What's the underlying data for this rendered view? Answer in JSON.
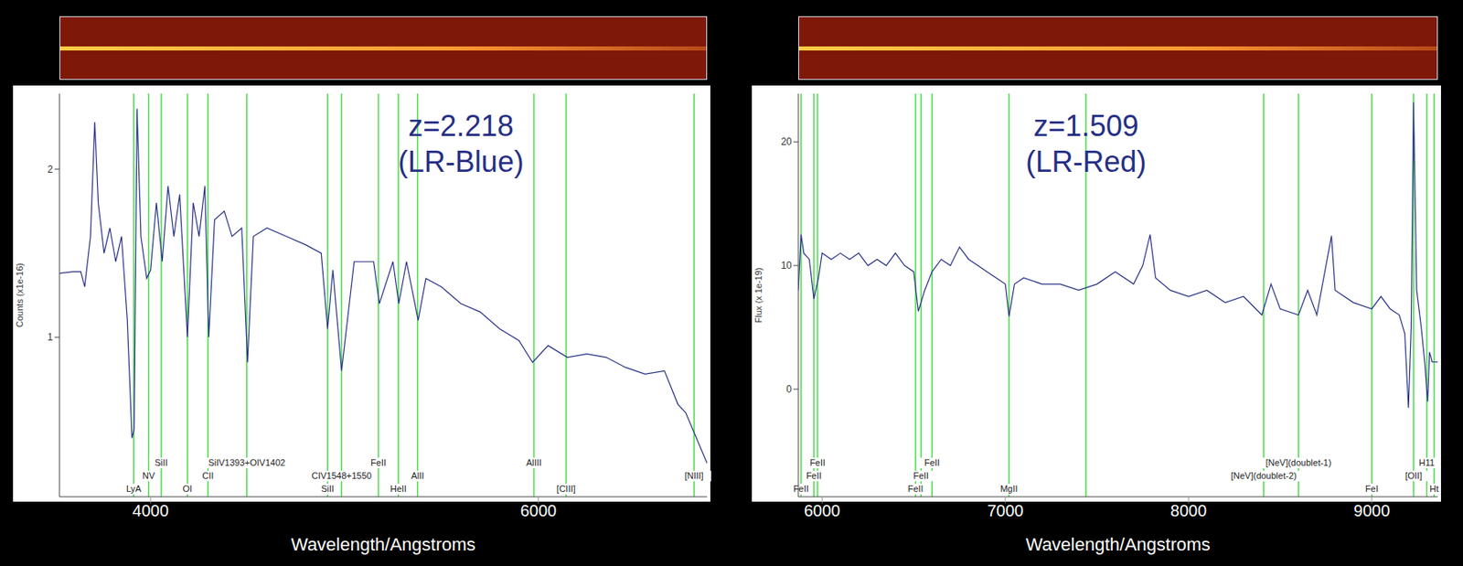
{
  "chart_data": [
    {
      "type": "line",
      "annotations": [
        "z=2.218",
        "(LR-Blue)"
      ],
      "x_label": "Wavelength/Angstroms",
      "y_label": "Counts (x1e-16)",
      "color": "#262f86",
      "xlim": [
        3530,
        6870
      ],
      "ylim": [
        0.05,
        2.45
      ],
      "xticks": [
        4000,
        6000
      ],
      "yticks": [
        1,
        2
      ],
      "x": [
        3530,
        3600,
        3640,
        3660,
        3690,
        3712,
        3730,
        3760,
        3790,
        3820,
        3850,
        3880,
        3904,
        3915,
        3930,
        3950,
        3980,
        4000,
        4030,
        4060,
        4090,
        4120,
        4150,
        4190,
        4220,
        4250,
        4280,
        4300,
        4330,
        4380,
        4420,
        4470,
        4500,
        4530,
        4600,
        4700,
        4800,
        4880,
        4913,
        4940,
        4985,
        5050,
        5150,
        5180,
        5250,
        5280,
        5320,
        5380,
        5420,
        5500,
        5600,
        5700,
        5800,
        5900,
        5970,
        6050,
        6150,
        6250,
        6350,
        6450,
        6550,
        6650,
        6720,
        6760,
        6870
      ],
      "values": [
        1.38,
        1.39,
        1.39,
        1.3,
        1.6,
        2.28,
        1.8,
        1.5,
        1.65,
        1.45,
        1.6,
        1.1,
        0.4,
        0.45,
        2.36,
        1.6,
        1.35,
        1.4,
        1.8,
        1.45,
        1.9,
        1.6,
        1.85,
        1.0,
        1.8,
        1.6,
        1.9,
        1.0,
        1.7,
        1.75,
        1.6,
        1.65,
        0.85,
        1.6,
        1.65,
        1.6,
        1.55,
        1.5,
        1.05,
        1.4,
        0.8,
        1.45,
        1.45,
        1.2,
        1.45,
        1.2,
        1.45,
        1.1,
        1.35,
        1.3,
        1.2,
        1.15,
        1.05,
        0.98,
        0.85,
        0.95,
        0.88,
        0.9,
        0.88,
        0.82,
        0.78,
        0.8,
        0.6,
        0.55,
        0.25
      ],
      "spectral_lines": [
        {
          "x": 3913,
          "label": "LyA"
        },
        {
          "x": 3990,
          "label": "NV"
        },
        {
          "x": 4055,
          "label": "SiII"
        },
        {
          "x": 4190,
          "label": "OI"
        },
        {
          "x": 4296,
          "label": "CII"
        },
        {
          "x": 4496,
          "label": "SiIV1393+OIV1402"
        },
        {
          "x": 4913,
          "label": "SiII"
        },
        {
          "x": 4985,
          "label": "CIV1548+1550"
        },
        {
          "x": 5175,
          "label": "FeII"
        },
        {
          "x": 5278,
          "label": "HeII"
        },
        {
          "x": 5377,
          "label": "AlII"
        },
        {
          "x": 5977,
          "label": "AlIII"
        },
        {
          "x": 6143,
          "label": "[CIII]"
        },
        {
          "x": 6803,
          "label": "[NIII]"
        }
      ]
    },
    {
      "type": "line",
      "annotations": [
        "z=1.509",
        "(LR-Red)"
      ],
      "x_label": "Wavelength/Angstroms",
      "y_label": "Flux (x 1e-19)",
      "color": "#262f86",
      "xlim": [
        5870,
        9360
      ],
      "ylim": [
        -8.7,
        23.9
      ],
      "xticks": [
        6000,
        7000,
        8000,
        9000
      ],
      "yticks": [
        0,
        10,
        20
      ],
      "x": [
        5870,
        5885,
        5900,
        5930,
        5955,
        5980,
        6000,
        6050,
        6100,
        6150,
        6200,
        6250,
        6300,
        6350,
        6400,
        6450,
        6500,
        6525,
        6560,
        6600,
        6650,
        6700,
        6750,
        6800,
        6850,
        6900,
        6950,
        7000,
        7020,
        7050,
        7100,
        7200,
        7300,
        7400,
        7500,
        7600,
        7700,
        7750,
        7790,
        7820,
        7900,
        8000,
        8100,
        8200,
        8300,
        8400,
        8450,
        8500,
        8600,
        8650,
        8700,
        8780,
        8800,
        8900,
        9000,
        9050,
        9100,
        9150,
        9180,
        9200,
        9215,
        9228,
        9245,
        9270,
        9290,
        9305,
        9315,
        9330,
        9360
      ],
      "values": [
        8,
        12.5,
        11,
        10.5,
        7.3,
        9,
        11,
        10.5,
        11,
        10.5,
        11,
        10,
        10.5,
        10,
        11,
        10,
        9.5,
        6.3,
        8,
        9.5,
        10.5,
        10,
        11.5,
        10.5,
        10,
        9.5,
        9,
        8.5,
        5.9,
        8.5,
        9,
        8.5,
        8.5,
        8,
        8.5,
        9.5,
        8.5,
        10,
        12.5,
        9,
        8,
        7.5,
        8,
        7,
        7.5,
        6,
        8.5,
        6.5,
        6,
        8,
        6,
        12.4,
        8,
        7,
        6.5,
        7.5,
        6.5,
        6,
        4.5,
        -1.5,
        5,
        23.2,
        8,
        5,
        2,
        -1,
        3,
        2.2,
        2.2
      ],
      "spectral_lines": [
        {
          "x": 5885,
          "label": "FeII"
        },
        {
          "x": 5955,
          "label": "FeII"
        },
        {
          "x": 5975,
          "label": "FeII"
        },
        {
          "x": 6510,
          "label": "FeII"
        },
        {
          "x": 6540,
          "label": "FeII"
        },
        {
          "x": 6600,
          "label": "FeII"
        },
        {
          "x": 7020,
          "label": "MgII"
        },
        {
          "x": 7440
        },
        {
          "x": 8410,
          "label": "[NeV](doublet-2)"
        },
        {
          "x": 8600,
          "label": "[NeV](doublet-1)"
        },
        {
          "x": 9000,
          "label": "FeI"
        },
        {
          "x": 9228,
          "label": "[OII]"
        },
        {
          "x": 9300,
          "label": "H11"
        },
        {
          "x": 9340,
          "label": "Ht"
        }
      ]
    }
  ]
}
